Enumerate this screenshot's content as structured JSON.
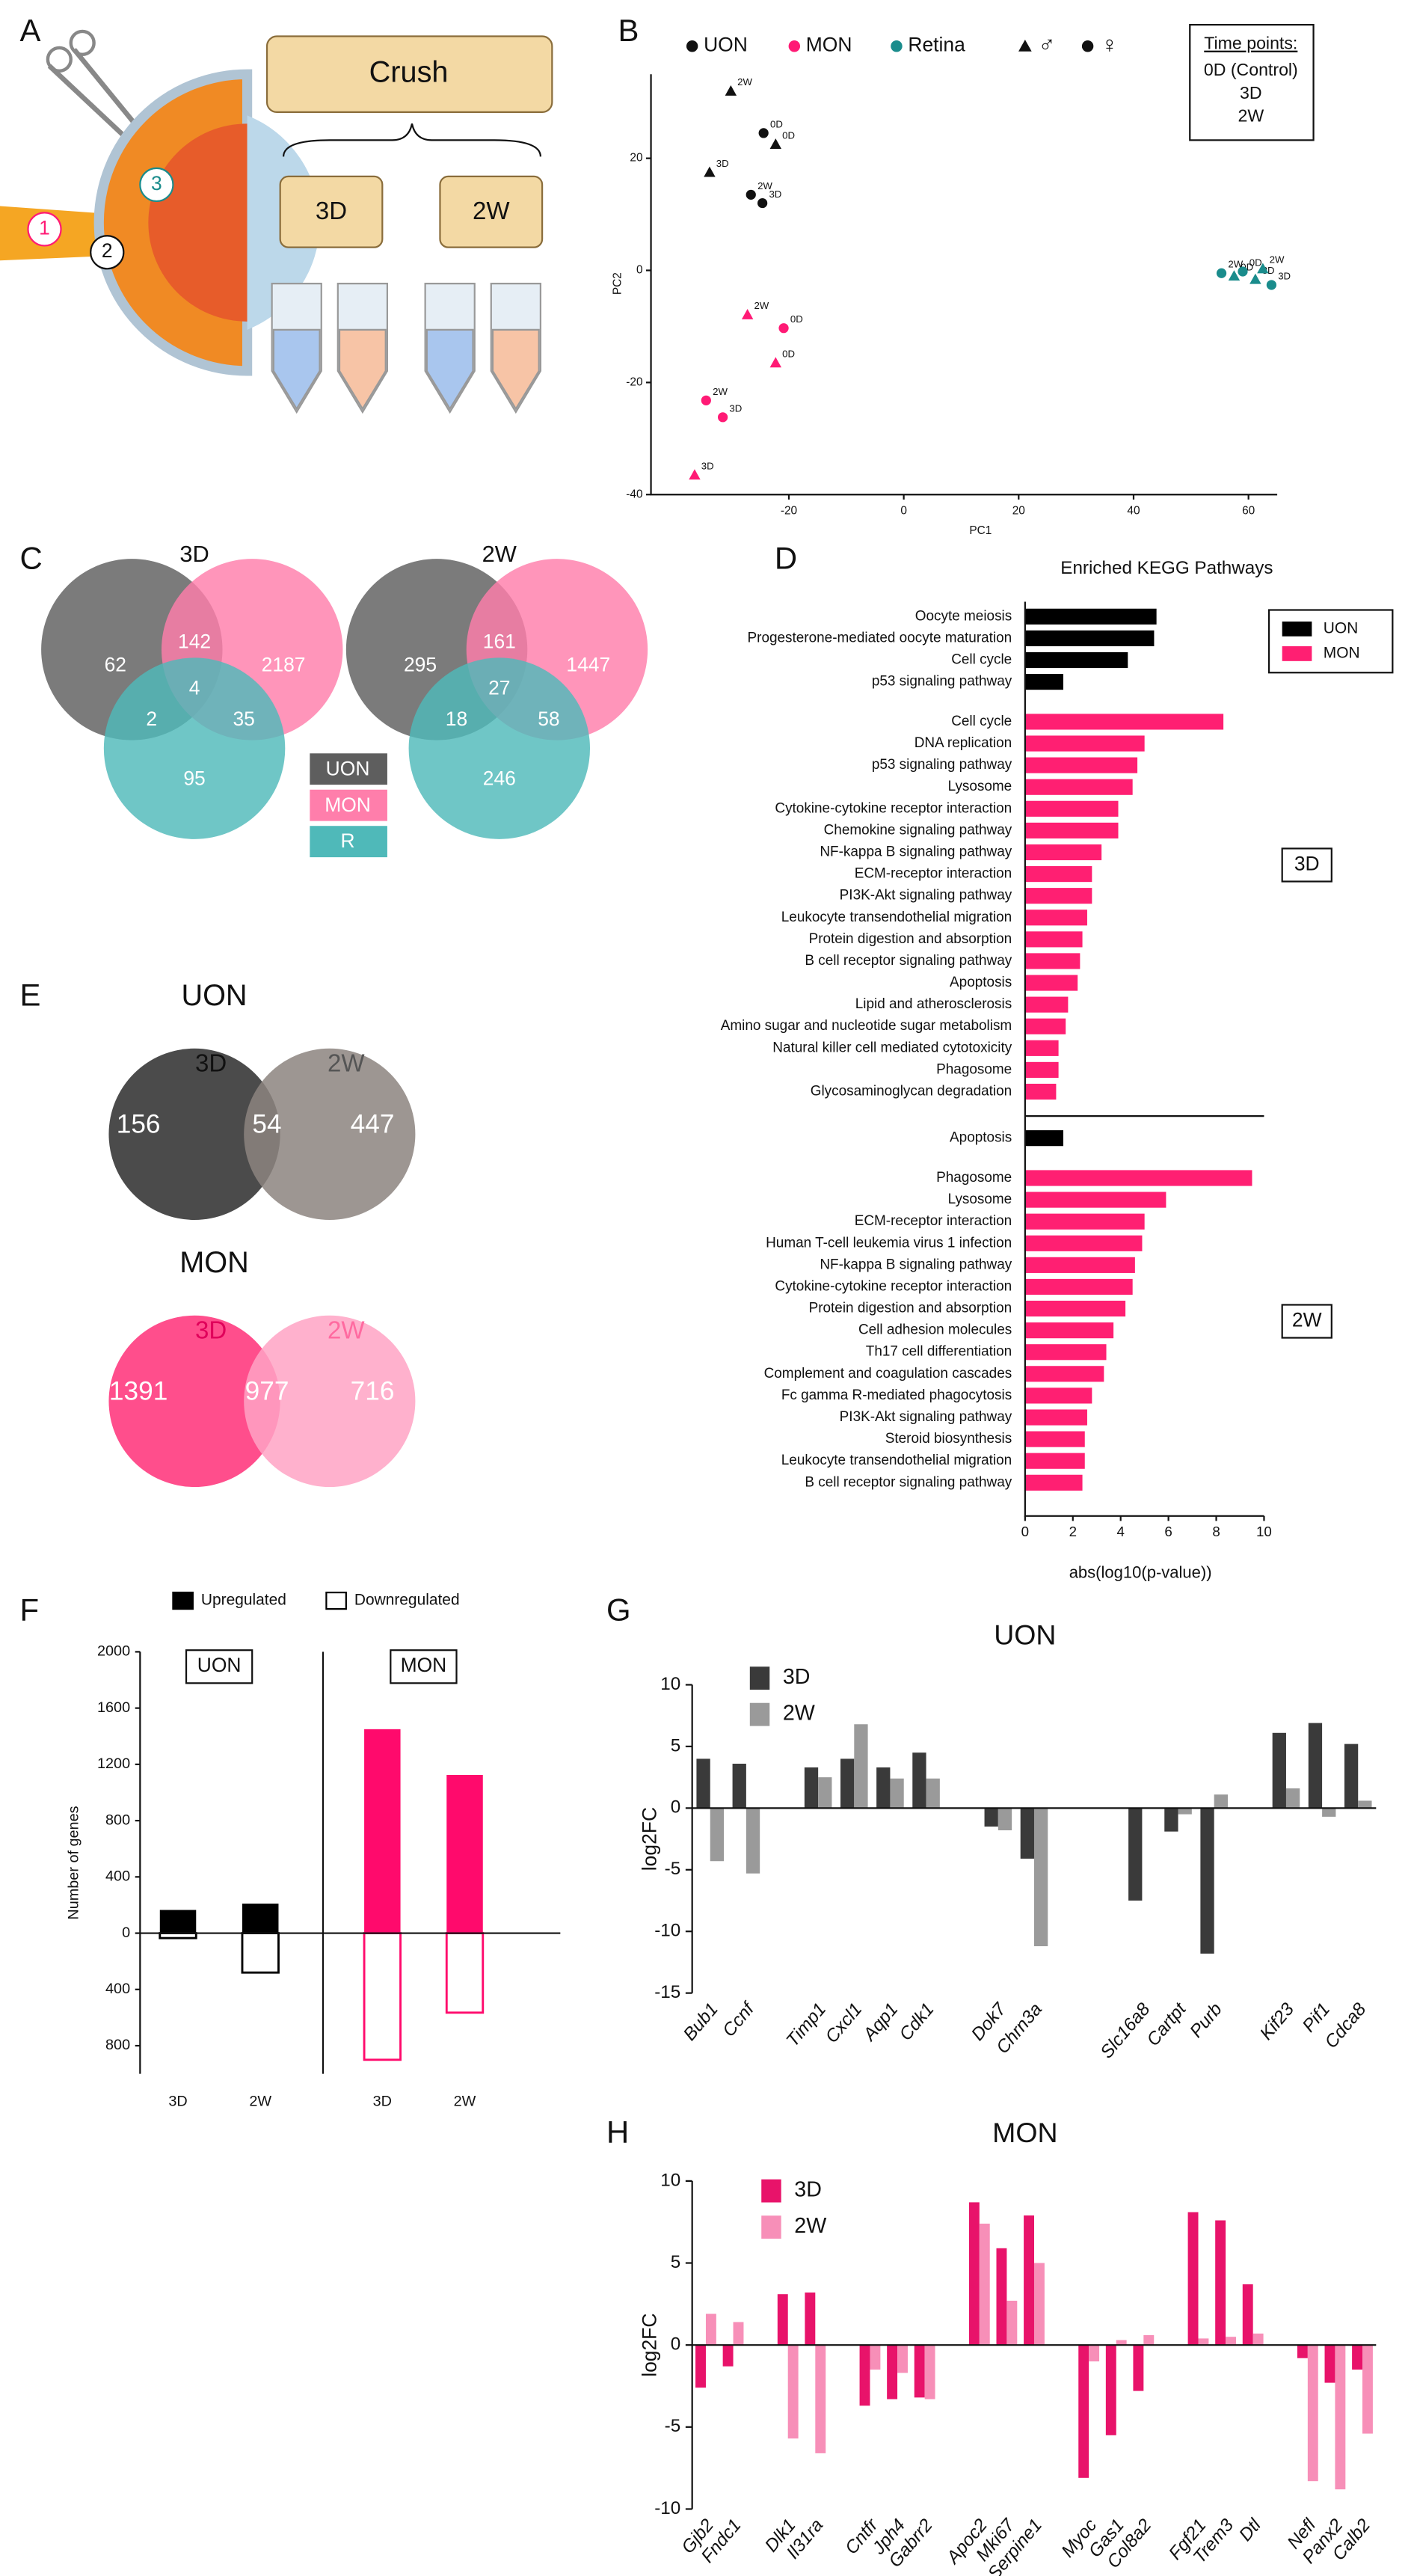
{
  "panel_letters": [
    "A",
    "B",
    "C",
    "D",
    "E",
    "F",
    "G",
    "H"
  ],
  "schematic": {
    "procedure": "Crush",
    "timepoints": [
      "3D",
      "2W"
    ],
    "sites": [
      "1",
      "2",
      "3"
    ]
  },
  "chart_data": [
    {
      "type": "scatter",
      "xlabel": "PC1",
      "ylabel": "PC2",
      "xlim": [
        -44,
        65
      ],
      "ylim": [
        -40,
        35
      ],
      "xticks": [
        -20,
        0,
        20,
        40,
        60
      ],
      "yticks": [
        -40,
        -20,
        0,
        20
      ],
      "series": [
        {
          "name": "UON",
          "color": "#111111",
          "x": [
            -30.1,
            -24.4,
            -22.3,
            -33.8,
            -26.6,
            -24.6
          ],
          "values": [
            32,
            24.5,
            22.5,
            17.5,
            13.5,
            12
          ],
          "shape": [
            "triangle",
            "circle",
            "triangle",
            "triangle",
            "circle",
            "circle"
          ],
          "labels": [
            "2W",
            "0D",
            "0D",
            "3D",
            "2W",
            "3D"
          ]
        },
        {
          "name": "MON",
          "color": "#ff1a75",
          "x": [
            -27.2,
            -20.9,
            -22.3,
            -34.4,
            -31.5,
            -36.4
          ],
          "values": [
            -7.9,
            -10.3,
            -16.5,
            -23.2,
            -26.2,
            -36.5
          ],
          "shape": [
            "triangle",
            "circle",
            "triangle",
            "circle",
            "circle",
            "triangle"
          ],
          "labels": [
            "2W",
            "0D",
            "0D",
            "2W",
            "3D",
            "3D"
          ]
        },
        {
          "name": "Retina",
          "color": "#1a8c8c",
          "x": [
            55.3,
            57.5,
            59.0,
            61.2,
            62.5,
            64.0
          ],
          "values": [
            -0.5,
            -1.0,
            -0.2,
            -1.6,
            0.3,
            -2.6
          ],
          "shape": [
            "circle",
            "triangle",
            "circle",
            "triangle",
            "triangle",
            "circle"
          ],
          "labels": [
            "2W",
            "0D",
            "0D",
            "3D",
            "2W",
            "3D"
          ]
        }
      ],
      "shape_legend": [
        {
          "label": "♂",
          "shape": "triangle"
        },
        {
          "label": "♀",
          "shape": "circle"
        }
      ],
      "timepoints_box": {
        "title": "Time points:",
        "items": [
          "0D (Control)",
          "3D",
          "2W"
        ]
      }
    },
    {
      "type": "venn3",
      "sets": [
        {
          "name": "UON",
          "color": "#5e5e5e"
        },
        {
          "name": "MON",
          "color": "#ff7eab"
        },
        {
          "name": "R",
          "color": "#4fb9b9"
        }
      ],
      "panels": [
        {
          "title": "3D",
          "counts": {
            "a": 62,
            "ab": 142,
            "b": 2187,
            "abc": 4,
            "ac": 2,
            "bc": 35,
            "c": 95
          }
        },
        {
          "title": "2W",
          "counts": {
            "a": 295,
            "ab": 161,
            "b": 1447,
            "abc": 27,
            "ac": 18,
            "bc": 58,
            "c": 246
          }
        }
      ]
    },
    {
      "type": "hbar",
      "title": "Enriched KEGG Pathways",
      "xlabel": "abs(log10(p-value))",
      "xlim": [
        0,
        10
      ],
      "xticks": [
        0,
        2,
        4,
        6,
        8,
        10
      ],
      "series": [
        {
          "name": "UON",
          "color": "#000000"
        },
        {
          "name": "MON",
          "color": "#ff1f72"
        }
      ],
      "groups": [
        {
          "name": "3D",
          "blocks": [
            {
              "series": 0,
              "categories": [
                "Oocyte meiosis",
                "Progesterone-mediated oocyte maturation",
                "Cell cycle",
                "p53 signaling pathway"
              ],
              "values": [
                5.5,
                5.4,
                4.3,
                1.6
              ]
            },
            {
              "series": 1,
              "categories": [
                "Cell cycle",
                "DNA replication",
                "p53 signaling pathway",
                "Lysosome",
                "Cytokine-cytokine receptor interaction",
                "Chemokine signaling pathway",
                "NF-kappa B signaling pathway",
                "ECM-receptor interaction",
                "PI3K-Akt signaling pathway",
                "Leukocyte transendothelial migration",
                "Protein digestion and absorption",
                "B cell receptor signaling pathway",
                "Apoptosis",
                "Lipid and atherosclerosis",
                "Amino sugar and nucleotide sugar metabolism",
                "Natural killer cell mediated cytotoxicity",
                "Phagosome",
                "Glycosaminoglycan degradation"
              ],
              "values": [
                8.3,
                5.0,
                4.7,
                4.5,
                3.9,
                3.9,
                3.2,
                2.8,
                2.8,
                2.6,
                2.4,
                2.3,
                2.2,
                1.8,
                1.7,
                1.4,
                1.4,
                1.3
              ]
            }
          ]
        },
        {
          "name": "2W",
          "blocks": [
            {
              "series": 0,
              "categories": [
                "Apoptosis"
              ],
              "values": [
                1.6
              ]
            },
            {
              "series": 1,
              "categories": [
                "Phagosome",
                "Lysosome",
                "ECM-receptor interaction",
                "Human T-cell leukemia virus 1 infection",
                "NF-kappa B signaling pathway",
                "Cytokine-cytokine receptor interaction",
                "Protein digestion and absorption",
                "Cell adhesion molecules",
                "Th17 cell differentiation",
                "Complement and coagulation cascades",
                "Fc gamma R-mediated phagocytosis",
                "PI3K-Akt signaling pathway",
                "Steroid biosynthesis",
                "Leukocyte transendothelial migration",
                "B cell receptor signaling pathway"
              ],
              "values": [
                9.5,
                5.9,
                5.0,
                4.9,
                4.6,
                4.5,
                4.2,
                3.7,
                3.4,
                3.3,
                2.8,
                2.6,
                2.5,
                2.5,
                2.4
              ]
            }
          ]
        }
      ]
    },
    {
      "type": "venn2",
      "panels": [
        {
          "title": "UON",
          "sets": [
            {
              "name": "3D",
              "color": "#2b2b2b",
              "label_color": "#111111"
            },
            {
              "name": "2W",
              "color": "#8c847f",
              "label_color": "#555555"
            }
          ],
          "counts": {
            "a": 156,
            "ab": 54,
            "b": 447
          }
        },
        {
          "title": "MON",
          "sets": [
            {
              "name": "3D",
              "color": "#ff2f78",
              "label_color": "#e0005a"
            },
            {
              "name": "2W",
              "color": "#ffa3c4",
              "label_color": "#ff6aa0"
            }
          ],
          "counts": {
            "a": 1391,
            "ab": 977,
            "b": 716
          }
        }
      ]
    },
    {
      "type": "updown",
      "ylabel": "Number of genes",
      "ylim": [
        -1000,
        2000
      ],
      "yticks": [
        {
          "value": -800,
          "label": "800"
        },
        {
          "value": -400,
          "label": "400"
        },
        0,
        400,
        800,
        1200,
        1600,
        2000
      ],
      "legend": [
        "Upregulated",
        "Downregulated"
      ],
      "groups": [
        {
          "name": "UON",
          "color": "#000000",
          "categories": [
            "3D",
            "2W"
          ],
          "up": [
            165,
            210
          ],
          "down": [
            -35,
            -280
          ]
        },
        {
          "name": "MON",
          "color": "#ff0a6c",
          "categories": [
            "3D",
            "2W"
          ],
          "up": [
            1450,
            1125
          ],
          "down": [
            -900,
            -565
          ]
        }
      ]
    },
    {
      "type": "bar",
      "title": "UON",
      "ylabel": "log2FC",
      "ylim": [
        -15,
        10
      ],
      "yticks": [
        -15,
        -10,
        -5,
        0,
        5,
        10
      ],
      "categories": [
        "Bub1",
        "Ccnf",
        null,
        "Timp1",
        "Cxcl1",
        "Aqp1",
        "Cdk1",
        null,
        "Dok7",
        "Chrn3a",
        null,
        null,
        "Slc16a8",
        "Cartpt",
        "Purb",
        null,
        "Kif23",
        "Pif1",
        "Cdca8"
      ],
      "series": [
        {
          "name": "3D",
          "color": "#3a3a3a",
          "values": [
            4.0,
            3.6,
            null,
            3.3,
            4.0,
            3.3,
            4.5,
            null,
            -1.5,
            -4.1,
            null,
            null,
            -7.5,
            -1.9,
            -11.8,
            null,
            6.1,
            6.9,
            5.2
          ]
        },
        {
          "name": "2W",
          "color": "#9a9a9a",
          "values": [
            -4.3,
            -5.3,
            null,
            2.5,
            6.8,
            2.4,
            2.4,
            null,
            -1.8,
            -11.2,
            null,
            null,
            0,
            -0.5,
            1.1,
            null,
            1.6,
            -0.7,
            0.6
          ]
        }
      ]
    },
    {
      "type": "bar",
      "title": "MON",
      "ylabel": "log2FC",
      "ylim": [
        -10,
        10
      ],
      "yticks": [
        -10,
        -5,
        0,
        5,
        10
      ],
      "categories": [
        "Gjb2",
        "Fndc1",
        null,
        "Dlk1",
        "Il31ra",
        null,
        "Cntfr",
        "Jph4",
        "Gabrr2",
        null,
        "Apoc2",
        "Mki67",
        "Serpine1",
        null,
        "Myoc",
        "Gas1",
        "Col8a2",
        null,
        "Fgf21",
        "Trem3",
        "Dtl",
        null,
        "Nefl",
        "Panx2",
        "Calb2"
      ],
      "series": [
        {
          "name": "3D",
          "color": "#e8136a",
          "values": [
            -2.6,
            -1.3,
            null,
            3.1,
            3.2,
            null,
            -3.7,
            -3.3,
            -3.2,
            null,
            8.7,
            5.9,
            7.9,
            null,
            -8.1,
            -5.5,
            -2.8,
            null,
            8.1,
            7.6,
            3.7,
            null,
            -0.8,
            -2.3,
            -1.5
          ]
        },
        {
          "name": "2W",
          "color": "#f78fb8",
          "values": [
            1.9,
            1.4,
            null,
            -5.7,
            -6.6,
            null,
            -1.5,
            -1.7,
            -3.3,
            null,
            7.4,
            2.7,
            5.0,
            null,
            -1.0,
            0.3,
            0.6,
            null,
            0.4,
            0.5,
            0.7,
            null,
            -8.3,
            -8.8,
            -5.4
          ]
        }
      ]
    }
  ]
}
